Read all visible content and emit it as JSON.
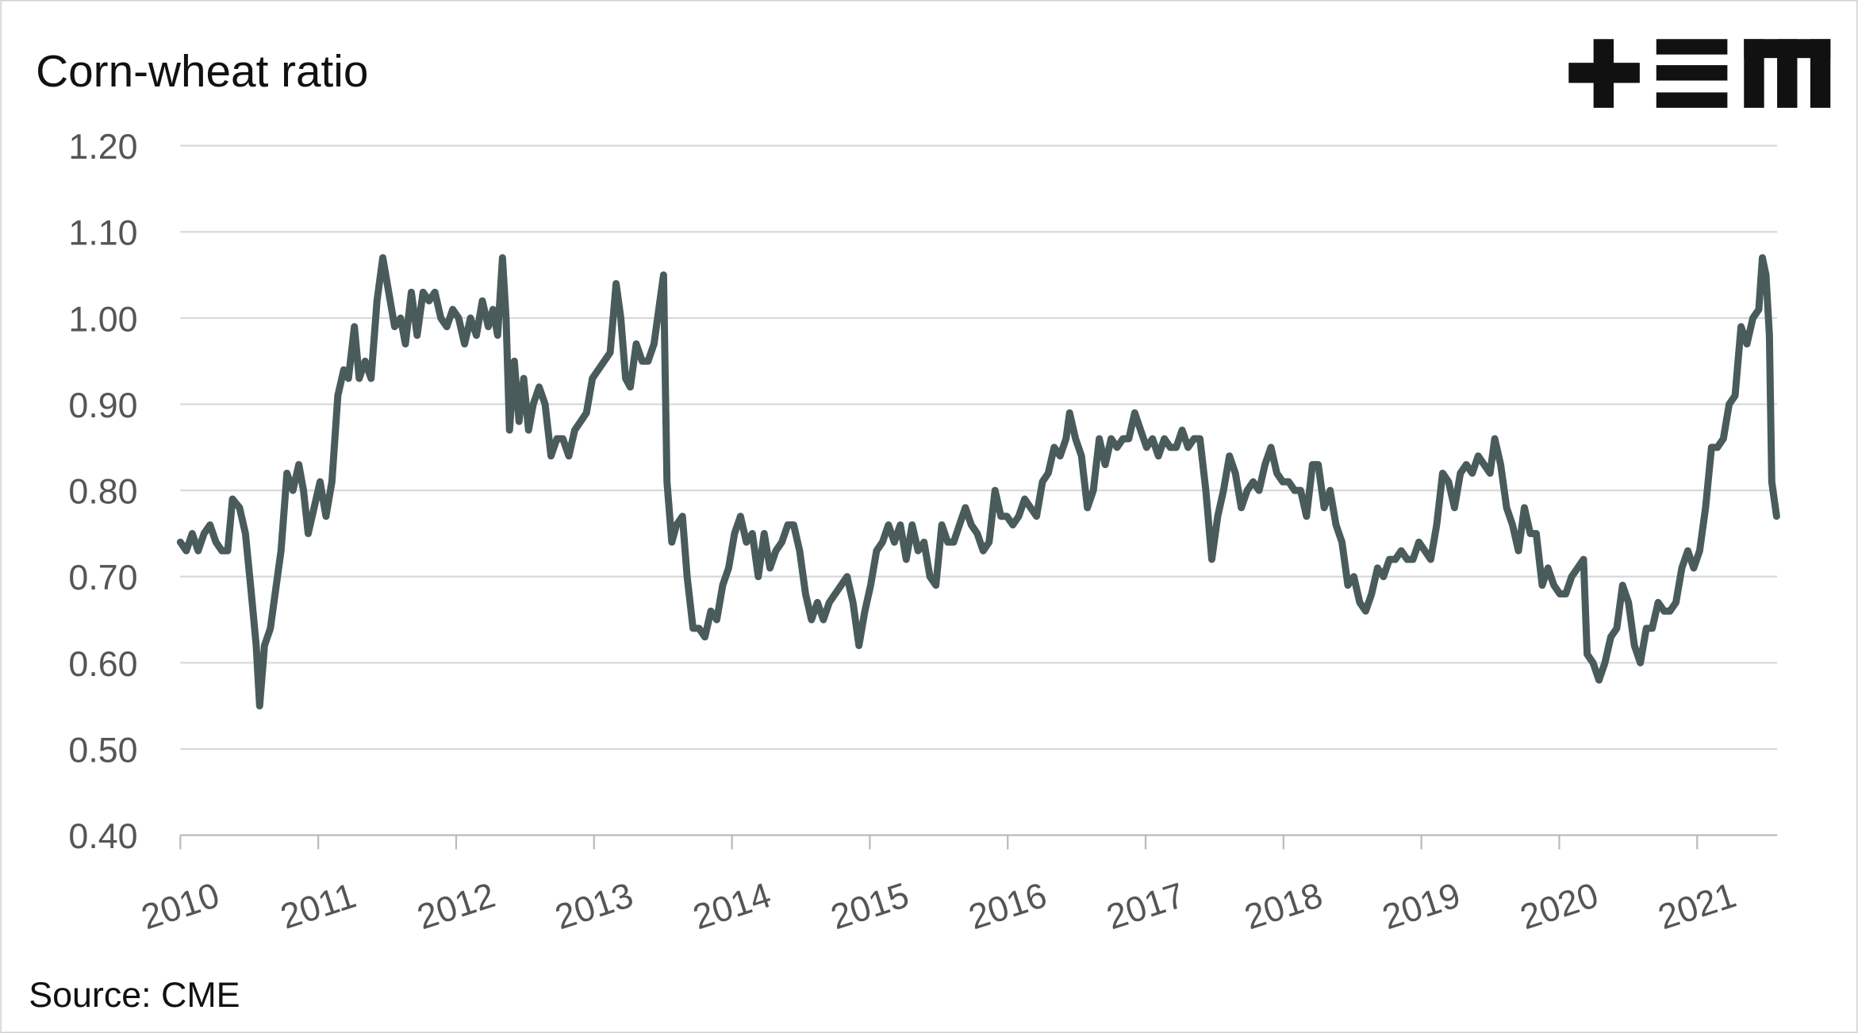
{
  "chart_data": {
    "type": "line",
    "title": "Corn-wheat ratio",
    "source": "Source: CME",
    "xlim": [
      2010,
      2021.58
    ],
    "xticks": [
      2010,
      2011,
      2012,
      2013,
      2014,
      2015,
      2016,
      2017,
      2018,
      2019,
      2020,
      2021
    ],
    "ylim": [
      0.4,
      1.2
    ],
    "yticks": [
      {
        "value": 0.4,
        "label": "0.40"
      },
      {
        "value": 0.5,
        "label": "0.50"
      },
      {
        "value": 0.6,
        "label": "0.60"
      },
      {
        "value": 0.7,
        "label": "0.70"
      },
      {
        "value": 0.8,
        "label": "0.80"
      },
      {
        "value": 0.9,
        "label": "0.90"
      },
      {
        "value": 1.0,
        "label": "1.00"
      },
      {
        "value": 1.1,
        "label": "1.10"
      },
      {
        "value": 1.2,
        "label": "1.20"
      }
    ],
    "grid": true,
    "x": [
      2010.0,
      2010.043,
      2010.086,
      2010.129,
      2010.172,
      2010.215,
      2010.258,
      2010.301,
      2010.343,
      2010.378,
      2010.429,
      2010.472,
      2010.515,
      2010.55,
      2010.575,
      2010.61,
      2010.653,
      2010.687,
      2010.73,
      2010.773,
      2010.816,
      2010.859,
      2010.893,
      2010.927,
      2010.97,
      2011.013,
      2011.056,
      2011.099,
      2011.142,
      2011.185,
      2011.219,
      2011.262,
      2011.297,
      2011.34,
      2011.383,
      2011.426,
      2011.468,
      2011.511,
      2011.554,
      2011.597,
      2011.632,
      2011.675,
      2011.717,
      2011.76,
      2011.803,
      2011.846,
      2011.889,
      2011.932,
      2011.975,
      2012.018,
      2012.061,
      2012.104,
      2012.147,
      2012.19,
      2012.233,
      2012.267,
      2012.301,
      2012.336,
      2012.362,
      2012.387,
      2012.422,
      2012.456,
      2012.49,
      2012.525,
      2012.559,
      2012.602,
      2012.645,
      2012.688,
      2012.731,
      2012.774,
      2012.817,
      2012.86,
      2012.903,
      2012.945,
      2012.988,
      2013.031,
      2013.074,
      2013.117,
      2013.16,
      2013.194,
      2013.229,
      2013.263,
      2013.306,
      2013.349,
      2013.392,
      2013.435,
      2013.504,
      2013.529,
      2013.564,
      2013.598,
      2013.641,
      2013.675,
      2013.718,
      2013.761,
      2013.804,
      2013.847,
      2013.89,
      2013.933,
      2013.976,
      2014.019,
      2014.062,
      2014.105,
      2014.148,
      2014.191,
      2014.234,
      2014.276,
      2014.319,
      2014.362,
      2014.405,
      2014.448,
      2014.491,
      2014.534,
      2014.577,
      2014.62,
      2014.663,
      2014.706,
      2014.749,
      2014.792,
      2014.835,
      2014.878,
      2014.921,
      2014.964,
      2015.006,
      2015.049,
      2015.092,
      2015.135,
      2015.178,
      2015.221,
      2015.264,
      2015.307,
      2015.35,
      2015.393,
      2015.436,
      2015.479,
      2015.522,
      2015.565,
      2015.608,
      2015.65,
      2015.693,
      2015.736,
      2015.779,
      2015.822,
      2015.865,
      2015.908,
      2015.951,
      2015.994,
      2016.037,
      2016.08,
      2016.123,
      2016.166,
      2016.209,
      2016.252,
      2016.294,
      2016.337,
      2016.38,
      2016.423,
      2016.449,
      2016.492,
      2016.535,
      2016.578,
      2016.621,
      2016.664,
      2016.707,
      2016.75,
      2016.793,
      2016.836,
      2016.878,
      2016.921,
      2016.964,
      2017.007,
      2017.05,
      2017.093,
      2017.136,
      2017.179,
      2017.222,
      2017.265,
      2017.308,
      2017.351,
      2017.394,
      2017.437,
      2017.48,
      2017.523,
      2017.565,
      2017.608,
      2017.651,
      2017.694,
      2017.737,
      2017.78,
      2017.823,
      2017.866,
      2017.909,
      2017.952,
      2017.995,
      2018.038,
      2018.081,
      2018.124,
      2018.167,
      2018.21,
      2018.252,
      2018.295,
      2018.338,
      2018.381,
      2018.424,
      2018.467,
      2018.51,
      2018.553,
      2018.596,
      2018.639,
      2018.682,
      2018.725,
      2018.768,
      2018.811,
      2018.854,
      2018.897,
      2018.939,
      2018.982,
      2019.025,
      2019.068,
      2019.111,
      2019.154,
      2019.197,
      2019.24,
      2019.283,
      2019.326,
      2019.369,
      2019.412,
      2019.455,
      2019.498,
      2019.532,
      2019.575,
      2019.618,
      2019.661,
      2019.704,
      2019.747,
      2019.79,
      2019.833,
      2019.876,
      2019.918,
      2019.961,
      2020.004,
      2020.047,
      2020.09,
      2020.133,
      2020.176,
      2020.202,
      2020.245,
      2020.288,
      2020.331,
      2020.374,
      2020.417,
      2020.459,
      2020.502,
      2020.545,
      2020.588,
      2020.631,
      2020.674,
      2020.717,
      2020.76,
      2020.803,
      2020.846,
      2020.889,
      2020.932,
      2020.975,
      2021.018,
      2021.061,
      2021.104,
      2021.147,
      2021.19,
      2021.232,
      2021.275,
      2021.318,
      2021.361,
      2021.404,
      2021.447,
      2021.473,
      2021.499,
      2021.524,
      2021.541,
      2021.576
    ],
    "series": [
      {
        "name": "Corn-wheat ratio",
        "color": "#4a5b5b",
        "values": [
          0.74,
          0.73,
          0.75,
          0.73,
          0.75,
          0.76,
          0.74,
          0.73,
          0.73,
          0.79,
          0.78,
          0.75,
          0.68,
          0.62,
          0.55,
          0.62,
          0.64,
          0.68,
          0.73,
          0.82,
          0.8,
          0.83,
          0.8,
          0.75,
          0.78,
          0.81,
          0.77,
          0.81,
          0.91,
          0.94,
          0.93,
          0.99,
          0.93,
          0.95,
          0.93,
          1.02,
          1.07,
          1.03,
          0.99,
          1.0,
          0.97,
          1.03,
          0.98,
          1.03,
          1.02,
          1.03,
          1.0,
          0.99,
          1.01,
          1.0,
          0.97,
          1.0,
          0.98,
          1.02,
          0.99,
          1.01,
          0.98,
          1.07,
          1.0,
          0.87,
          0.95,
          0.88,
          0.93,
          0.87,
          0.9,
          0.92,
          0.9,
          0.84,
          0.86,
          0.86,
          0.84,
          0.87,
          0.88,
          0.89,
          0.93,
          0.94,
          0.95,
          0.96,
          1.04,
          1.0,
          0.93,
          0.92,
          0.97,
          0.95,
          0.95,
          0.97,
          1.05,
          0.81,
          0.74,
          0.76,
          0.77,
          0.7,
          0.64,
          0.64,
          0.63,
          0.66,
          0.65,
          0.69,
          0.71,
          0.75,
          0.77,
          0.74,
          0.75,
          0.7,
          0.75,
          0.71,
          0.73,
          0.74,
          0.76,
          0.76,
          0.73,
          0.68,
          0.65,
          0.67,
          0.65,
          0.67,
          0.68,
          0.69,
          0.7,
          0.67,
          0.62,
          0.66,
          0.69,
          0.73,
          0.74,
          0.76,
          0.74,
          0.76,
          0.72,
          0.76,
          0.73,
          0.74,
          0.7,
          0.69,
          0.76,
          0.74,
          0.74,
          0.76,
          0.78,
          0.76,
          0.75,
          0.73,
          0.74,
          0.8,
          0.77,
          0.77,
          0.76,
          0.77,
          0.79,
          0.78,
          0.77,
          0.81,
          0.82,
          0.85,
          0.84,
          0.86,
          0.89,
          0.86,
          0.84,
          0.78,
          0.8,
          0.86,
          0.83,
          0.86,
          0.85,
          0.86,
          0.86,
          0.89,
          0.87,
          0.85,
          0.86,
          0.84,
          0.86,
          0.85,
          0.85,
          0.87,
          0.85,
          0.86,
          0.86,
          0.8,
          0.72,
          0.77,
          0.8,
          0.84,
          0.82,
          0.78,
          0.8,
          0.81,
          0.8,
          0.83,
          0.85,
          0.82,
          0.81,
          0.81,
          0.8,
          0.8,
          0.77,
          0.83,
          0.83,
          0.78,
          0.8,
          0.76,
          0.74,
          0.69,
          0.7,
          0.67,
          0.66,
          0.68,
          0.71,
          0.7,
          0.72,
          0.72,
          0.73,
          0.72,
          0.72,
          0.74,
          0.73,
          0.72,
          0.76,
          0.82,
          0.81,
          0.78,
          0.82,
          0.83,
          0.82,
          0.84,
          0.83,
          0.82,
          0.86,
          0.83,
          0.78,
          0.76,
          0.73,
          0.78,
          0.75,
          0.75,
          0.69,
          0.71,
          0.69,
          0.68,
          0.68,
          0.7,
          0.71,
          0.72,
          0.61,
          0.6,
          0.58,
          0.6,
          0.63,
          0.64,
          0.69,
          0.67,
          0.62,
          0.6,
          0.64,
          0.64,
          0.67,
          0.66,
          0.66,
          0.67,
          0.71,
          0.73,
          0.71,
          0.73,
          0.78,
          0.85,
          0.85,
          0.86,
          0.9,
          0.91,
          0.99,
          0.97,
          1.0,
          1.01,
          1.07,
          1.05,
          0.98,
          0.81,
          0.77
        ]
      }
    ]
  }
}
